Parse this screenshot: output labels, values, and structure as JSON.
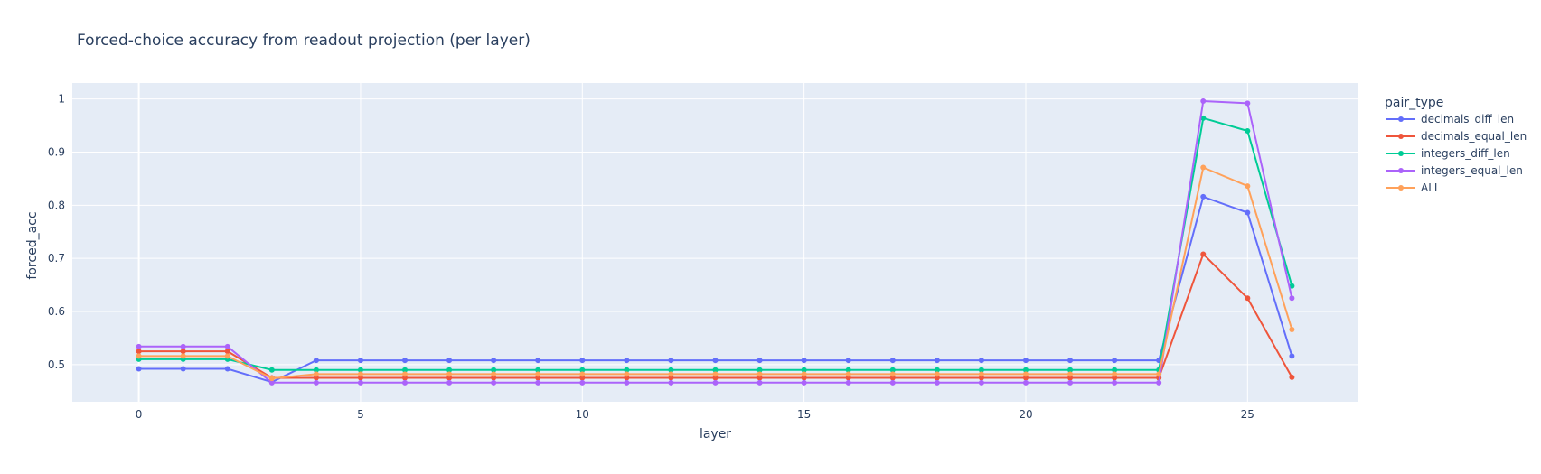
{
  "chart_data": {
    "type": "line",
    "title": "Forced-choice accuracy from readout projection (per layer)",
    "xlabel": "layer",
    "ylabel": "forced_acc",
    "legend_title": "pair_type",
    "legend_position": "right",
    "grid": true,
    "xlim": [
      -1.5,
      27.5
    ],
    "ylim": [
      0.43,
      1.03
    ],
    "xticks": [
      0,
      5,
      10,
      15,
      20,
      25
    ],
    "yticks": [
      0.5,
      0.6,
      0.7,
      0.8,
      0.9,
      1
    ],
    "ytick_labels": [
      "0.5",
      "0.6",
      "0.7",
      "0.8",
      "0.9",
      "1"
    ],
    "x": [
      0,
      1,
      2,
      3,
      4,
      5,
      6,
      7,
      8,
      9,
      10,
      11,
      12,
      13,
      14,
      15,
      16,
      17,
      18,
      19,
      20,
      21,
      22,
      23,
      24,
      25,
      26
    ],
    "series": [
      {
        "name": "decimals_diff_len",
        "color": "#636efa",
        "values": [
          0.492,
          0.492,
          0.492,
          0.467,
          0.508,
          0.508,
          0.508,
          0.508,
          0.508,
          0.508,
          0.508,
          0.508,
          0.508,
          0.508,
          0.508,
          0.508,
          0.508,
          0.508,
          0.508,
          0.508,
          0.508,
          0.508,
          0.508,
          0.508,
          0.816,
          0.786,
          0.516
        ]
      },
      {
        "name": "decimals_equal_len",
        "color": "#ef553b",
        "values": [
          0.525,
          0.525,
          0.525,
          0.475,
          0.475,
          0.475,
          0.475,
          0.475,
          0.475,
          0.475,
          0.475,
          0.475,
          0.475,
          0.475,
          0.475,
          0.475,
          0.475,
          0.475,
          0.475,
          0.475,
          0.475,
          0.475,
          0.475,
          0.475,
          0.708,
          0.625,
          0.476
        ]
      },
      {
        "name": "integers_diff_len",
        "color": "#00cc96",
        "values": [
          0.51,
          0.51,
          0.51,
          0.49,
          0.49,
          0.49,
          0.49,
          0.49,
          0.49,
          0.49,
          0.49,
          0.49,
          0.49,
          0.49,
          0.49,
          0.49,
          0.49,
          0.49,
          0.49,
          0.49,
          0.49,
          0.49,
          0.49,
          0.49,
          0.964,
          0.94,
          0.648
        ]
      },
      {
        "name": "integers_equal_len",
        "color": "#ab63fa",
        "values": [
          0.534,
          0.534,
          0.534,
          0.466,
          0.466,
          0.466,
          0.466,
          0.466,
          0.466,
          0.466,
          0.466,
          0.466,
          0.466,
          0.466,
          0.466,
          0.466,
          0.466,
          0.466,
          0.466,
          0.466,
          0.466,
          0.466,
          0.466,
          0.466,
          0.996,
          0.992,
          0.625
        ]
      },
      {
        "name": "ALL",
        "color": "#ffa15a",
        "values": [
          0.516,
          0.516,
          0.516,
          0.474,
          0.482,
          0.482,
          0.482,
          0.482,
          0.482,
          0.482,
          0.482,
          0.482,
          0.482,
          0.482,
          0.482,
          0.482,
          0.482,
          0.482,
          0.482,
          0.482,
          0.482,
          0.482,
          0.482,
          0.482,
          0.871,
          0.836,
          0.566
        ]
      }
    ]
  }
}
